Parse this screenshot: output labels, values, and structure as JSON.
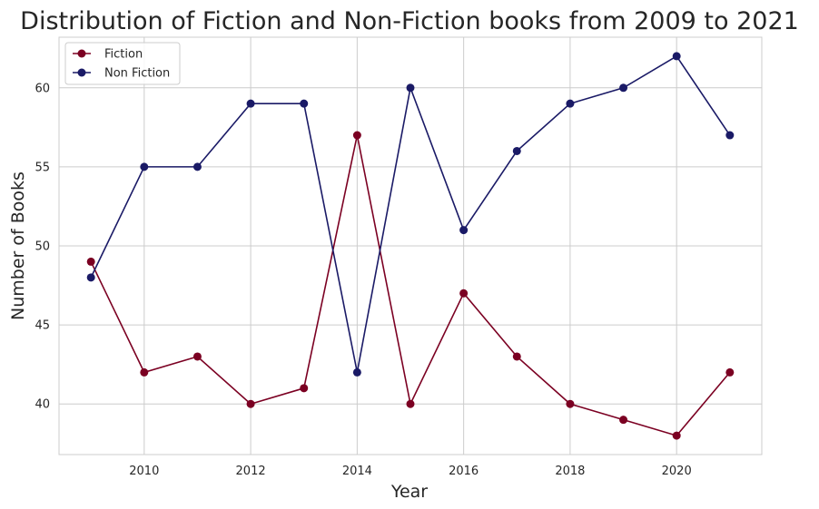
{
  "chart_data": {
    "type": "line",
    "title": "Distribution of Fiction and Non-Fiction books from 2009 to 2021",
    "xlabel": "Year",
    "ylabel": "Number of Books",
    "x": [
      2009,
      2010,
      2011,
      2012,
      2013,
      2014,
      2015,
      2016,
      2017,
      2018,
      2019,
      2020,
      2021
    ],
    "series": [
      {
        "name": "Fiction",
        "color": "#7b0022",
        "values": [
          49,
          42,
          43,
          40,
          41,
          57,
          40,
          47,
          43,
          40,
          39,
          38,
          42
        ]
      },
      {
        "name": "Non Fiction",
        "color": "#1a1a66",
        "values": [
          48,
          55,
          55,
          59,
          59,
          42,
          60,
          51,
          56,
          59,
          60,
          62,
          57
        ]
      }
    ],
    "xlim": [
      2008.4,
      2021.6
    ],
    "ylim": [
      36.8,
      63.2
    ],
    "xticks": [
      2010,
      2012,
      2014,
      2016,
      2018,
      2020
    ],
    "yticks": [
      40,
      45,
      50,
      55,
      60
    ],
    "grid": true,
    "legend_position": "top-left",
    "marker": "circle"
  }
}
